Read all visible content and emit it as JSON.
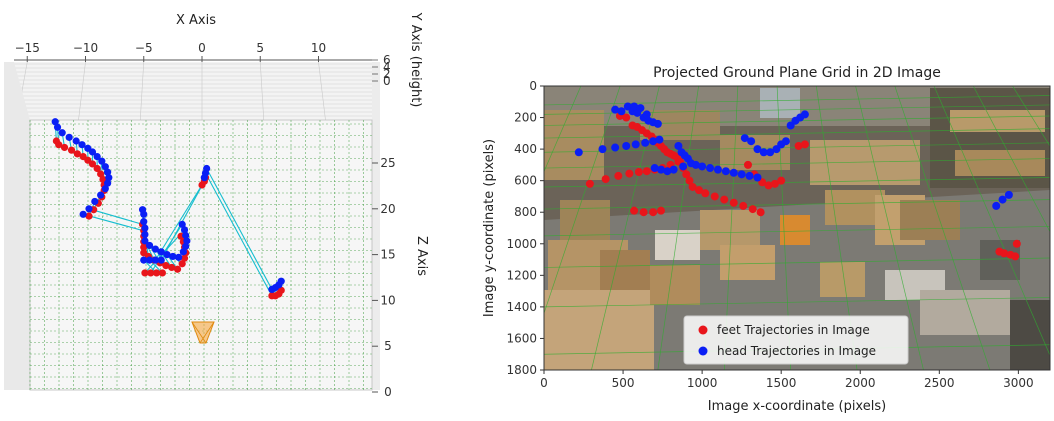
{
  "chart_data": [
    {
      "type": "scatter",
      "title": "",
      "xlabel": "X Axis",
      "ylabel": "Y Axis (height)",
      "zlabel": "Z Axis",
      "x_ticks": [
        "−15",
        "−10",
        "−5",
        "0",
        "5",
        "10"
      ],
      "z_ticks": [
        "0",
        "5",
        "10",
        "15",
        "20",
        "25"
      ],
      "y_ticks": [
        "6",
        "4",
        "2",
        "0"
      ],
      "xlim": [
        -15.5,
        14.5
      ],
      "zlim": [
        0,
        29
      ],
      "grid": true,
      "colors": {
        "feet": "#e8151b",
        "head": "#0a1ef5",
        "link": "#17becf",
        "grid": "#3a9a3a",
        "camera": "#f5a030"
      },
      "series": [
        {
          "name": "",
          "role": "feet",
          "points": [
            [
              -12.5,
              27.4
            ],
            [
              -12.3,
              27.0
            ],
            [
              -11.8,
              26.7
            ],
            [
              -11.2,
              26.4
            ],
            [
              -10.7,
              26.0
            ],
            [
              -10.2,
              25.7
            ],
            [
              -9.8,
              25.3
            ],
            [
              -9.4,
              24.9
            ],
            [
              -9.0,
              24.4
            ],
            [
              -8.7,
              23.8
            ],
            [
              -8.5,
              23.2
            ],
            [
              -8.4,
              22.6
            ],
            [
              -8.4,
              22.0
            ],
            [
              -8.6,
              21.3
            ],
            [
              -8.9,
              20.6
            ],
            [
              -9.3,
              19.9
            ],
            [
              -9.7,
              19.2
            ],
            [
              -5.1,
              18.3
            ],
            [
              -5.0,
              17.6
            ],
            [
              -5.0,
              17.0
            ],
            [
              -5.0,
              16.4
            ],
            [
              -5.0,
              15.8
            ],
            [
              -5.0,
              15.2
            ],
            [
              -4.6,
              14.8
            ],
            [
              -4.1,
              14.4
            ],
            [
              -3.6,
              14.1
            ],
            [
              -3.1,
              13.8
            ],
            [
              -2.6,
              13.6
            ],
            [
              -2.1,
              13.4
            ],
            [
              -1.7,
              14.0
            ],
            [
              -1.5,
              14.6
            ],
            [
              -1.4,
              15.2
            ],
            [
              -1.5,
              15.8
            ],
            [
              -1.6,
              16.4
            ],
            [
              -1.8,
              17.0
            ],
            [
              -4.9,
              13.0
            ],
            [
              -4.4,
              13.0
            ],
            [
              -3.9,
              13.0
            ],
            [
              -3.4,
              13.0
            ],
            [
              0.0,
              22.6
            ],
            [
              0.2,
              23.0
            ],
            [
              0.3,
              23.4
            ],
            [
              6.0,
              10.5
            ],
            [
              6.3,
              10.5
            ],
            [
              6.6,
              10.7
            ],
            [
              6.8,
              11.1
            ]
          ]
        },
        {
          "name": "",
          "role": "head",
          "points": [
            [
              -12.6,
              29.5
            ],
            [
              -12.4,
              28.9
            ],
            [
              -12.0,
              28.3
            ],
            [
              -11.4,
              27.8
            ],
            [
              -10.8,
              27.4
            ],
            [
              -10.3,
              27.0
            ],
            [
              -9.8,
              26.6
            ],
            [
              -9.4,
              26.2
            ],
            [
              -9.0,
              25.7
            ],
            [
              -8.6,
              25.2
            ],
            [
              -8.3,
              24.6
            ],
            [
              -8.1,
              24.0
            ],
            [
              -8.0,
              23.4
            ],
            [
              -8.1,
              22.8
            ],
            [
              -8.3,
              22.2
            ],
            [
              -8.7,
              21.5
            ],
            [
              -9.2,
              20.8
            ],
            [
              -9.7,
              20.0
            ],
            [
              -10.2,
              19.4
            ],
            [
              -5.1,
              19.9
            ],
            [
              -5.0,
              19.4
            ],
            [
              -5.0,
              18.6
            ],
            [
              -4.9,
              17.9
            ],
            [
              -4.9,
              17.2
            ],
            [
              -4.9,
              16.5
            ],
            [
              -4.5,
              16.0
            ],
            [
              -4.0,
              15.6
            ],
            [
              -3.5,
              15.3
            ],
            [
              -3.0,
              15.0
            ],
            [
              -2.5,
              14.8
            ],
            [
              -2.0,
              14.7
            ],
            [
              -1.6,
              15.3
            ],
            [
              -1.4,
              15.9
            ],
            [
              -1.3,
              16.5
            ],
            [
              -1.4,
              17.1
            ],
            [
              -1.5,
              17.7
            ],
            [
              -1.7,
              18.3
            ],
            [
              -5.0,
              14.4
            ],
            [
              -4.5,
              14.4
            ],
            [
              -4.0,
              14.4
            ],
            [
              -3.5,
              14.4
            ],
            [
              0.2,
              23.4
            ],
            [
              0.3,
              23.9
            ],
            [
              0.4,
              24.4
            ],
            [
              6.0,
              11.2
            ],
            [
              6.3,
              11.4
            ],
            [
              6.6,
              11.7
            ],
            [
              6.8,
              12.1
            ]
          ]
        }
      ]
    },
    {
      "type": "scatter",
      "title": "Projected Ground Plane Grid in 2D Image",
      "xlabel": "Image x-coordinate (pixels)",
      "ylabel": "Image y-coordinate (pixels)",
      "xlim": [
        0,
        3200
      ],
      "ylim": [
        1800,
        0
      ],
      "x_ticks": [
        "0",
        "500",
        "1000",
        "1500",
        "2000",
        "2500",
        "3000"
      ],
      "y_ticks": [
        "0",
        "200",
        "400",
        "600",
        "800",
        "1000",
        "1200",
        "1400",
        "1600",
        "1800"
      ],
      "legend": "lower-right",
      "colors": {
        "feet": "#e8151b",
        "head": "#0a1ef5",
        "grid": "#2fae2f",
        "photo": "#6b6358"
      },
      "series": [
        {
          "name": "feet Trajectories in Image",
          "points": [
            [
              290,
              620
            ],
            [
              390,
              590
            ],
            [
              470,
              570
            ],
            [
              540,
              555
            ],
            [
              600,
              545
            ],
            [
              650,
              540
            ],
            [
              700,
              530
            ],
            [
              750,
              520
            ],
            [
              800,
              500
            ],
            [
              850,
              480
            ],
            [
              480,
              190
            ],
            [
              520,
              200
            ],
            [
              560,
              250
            ],
            [
              590,
              260
            ],
            [
              620,
              280
            ],
            [
              650,
              300
            ],
            [
              680,
              320
            ],
            [
              700,
              340
            ],
            [
              720,
              360
            ],
            [
              740,
              380
            ],
            [
              760,
              400
            ],
            [
              780,
              420
            ],
            [
              800,
              430
            ],
            [
              820,
              440
            ],
            [
              840,
              450
            ],
            [
              860,
              480
            ],
            [
              880,
              520
            ],
            [
              900,
              560
            ],
            [
              920,
              600
            ],
            [
              940,
              640
            ],
            [
              980,
              660
            ],
            [
              1020,
              680
            ],
            [
              1080,
              700
            ],
            [
              1140,
              720
            ],
            [
              1200,
              740
            ],
            [
              1260,
              760
            ],
            [
              1320,
              780
            ],
            [
              1370,
              800
            ],
            [
              570,
              790
            ],
            [
              630,
              800
            ],
            [
              690,
              800
            ],
            [
              740,
              790
            ],
            [
              1290,
              500
            ],
            [
              1330,
              560
            ],
            [
              1380,
              610
            ],
            [
              1420,
              630
            ],
            [
              1460,
              620
            ],
            [
              1500,
              600
            ],
            [
              1610,
              380
            ],
            [
              1650,
              370
            ],
            [
              2880,
              1050
            ],
            [
              2910,
              1060
            ],
            [
              2950,
              1070
            ],
            [
              2980,
              1080
            ],
            [
              2990,
              1000
            ]
          ]
        },
        {
          "name": "head Trajectories in Image",
          "points": [
            [
              220,
              420
            ],
            [
              370,
              400
            ],
            [
              450,
              390
            ],
            [
              520,
              380
            ],
            [
              580,
              370
            ],
            [
              640,
              360
            ],
            [
              690,
              350
            ],
            [
              730,
              340
            ],
            [
              450,
              150
            ],
            [
              490,
              160
            ],
            [
              530,
              130
            ],
            [
              560,
              160
            ],
            [
              590,
              170
            ],
            [
              630,
              200
            ],
            [
              660,
              220
            ],
            [
              690,
              230
            ],
            [
              720,
              240
            ],
            [
              570,
              130
            ],
            [
              610,
              140
            ],
            [
              650,
              180
            ],
            [
              850,
              380
            ],
            [
              870,
              420
            ],
            [
              890,
              440
            ],
            [
              910,
              460
            ],
            [
              930,
              490
            ],
            [
              960,
              500
            ],
            [
              1000,
              510
            ],
            [
              1050,
              520
            ],
            [
              1100,
              530
            ],
            [
              1150,
              540
            ],
            [
              1200,
              550
            ],
            [
              1250,
              560
            ],
            [
              1300,
              570
            ],
            [
              1350,
              580
            ],
            [
              700,
              520
            ],
            [
              740,
              530
            ],
            [
              780,
              540
            ],
            [
              820,
              530
            ],
            [
              880,
              510
            ],
            [
              1270,
              330
            ],
            [
              1310,
              350
            ],
            [
              1350,
              400
            ],
            [
              1390,
              420
            ],
            [
              1430,
              420
            ],
            [
              1470,
              400
            ],
            [
              1500,
              370
            ],
            [
              1530,
              350
            ],
            [
              1560,
              250
            ],
            [
              1590,
              220
            ],
            [
              1620,
              200
            ],
            [
              1650,
              180
            ],
            [
              2860,
              760
            ],
            [
              2900,
              720
            ],
            [
              2940,
              690
            ]
          ]
        }
      ]
    }
  ]
}
